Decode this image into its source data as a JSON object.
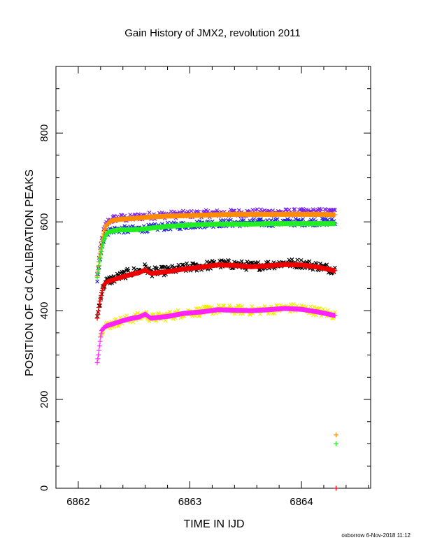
{
  "chart_data": {
    "type": "scatter",
    "title": "Gain History of JMX2, revolution 2011",
    "xlabel": "TIME IN IJD",
    "ylabel": "POSITION OF Cd CALIBRATION PEAKS",
    "xlim": [
      6861.8,
      6864.62
    ],
    "ylim": [
      0,
      950
    ],
    "x_ticks": [
      "6862",
      "6863",
      "6864"
    ],
    "y_ticks": [
      "0",
      "200",
      "400",
      "600",
      "800"
    ],
    "grid": false,
    "legend": "none",
    "footer": "oxborrow  6-Nov-2018 11:12",
    "series": [
      {
        "color": "#7b22ee",
        "marker": "x",
        "scatter": 8,
        "x": [
          6862.17,
          6862.19,
          6862.21,
          6862.23,
          6862.25,
          6862.28,
          6862.32,
          6862.38,
          6862.45,
          6862.55,
          6862.65,
          6862.8,
          6862.95,
          6863.1,
          6863.25,
          6863.4,
          6863.55,
          6863.7,
          6863.85,
          6864.0,
          6864.15,
          6864.3
        ],
        "y": [
          480,
          525,
          560,
          580,
          595,
          603,
          607,
          609,
          608,
          612,
          614,
          616,
          617,
          618,
          619,
          620,
          620,
          621,
          621,
          621,
          622,
          622
        ]
      },
      {
        "color": "#2222dd",
        "marker": "x",
        "scatter": 8,
        "x": [
          6862.17,
          6862.19,
          6862.21,
          6862.23,
          6862.25,
          6862.28,
          6862.32,
          6862.38,
          6862.45,
          6862.55,
          6862.65,
          6862.8,
          6862.95,
          6863.1,
          6863.25,
          6863.4,
          6863.55,
          6863.7,
          6863.85,
          6864.0,
          6864.15,
          6864.3
        ],
        "y": [
          470,
          512,
          545,
          565,
          575,
          580,
          582,
          583,
          582,
          584,
          586,
          590,
          592,
          595,
          597,
          597,
          598,
          598,
          599,
          599,
          600,
          600
        ]
      },
      {
        "color": "#000000",
        "marker": "x",
        "scatter": 10,
        "x": [
          6862.17,
          6862.19,
          6862.21,
          6862.23,
          6862.25,
          6862.28,
          6862.32,
          6862.38,
          6862.45,
          6862.55,
          6862.6,
          6862.65,
          6862.8,
          6862.95,
          6863.1,
          6863.25,
          6863.4,
          6863.55,
          6863.7,
          6863.85,
          6864.0,
          6864.15,
          6864.3
        ],
        "y": [
          385,
          415,
          440,
          458,
          465,
          468,
          472,
          478,
          485,
          490,
          496,
          487,
          490,
          496,
          500,
          505,
          504,
          500,
          503,
          507,
          506,
          500,
          492
        ]
      },
      {
        "color": "#eeee00",
        "marker": "x",
        "scatter": 10,
        "x": [
          6862.2,
          6862.23,
          6862.25,
          6862.28,
          6862.32,
          6862.38,
          6862.45,
          6862.55,
          6862.6,
          6862.65,
          6862.8,
          6862.95,
          6863.1,
          6863.25,
          6863.4,
          6863.55,
          6863.7,
          6863.85,
          6864.0,
          6864.15,
          6864.3
        ],
        "y": [
          355,
          362,
          365,
          368,
          372,
          376,
          381,
          386,
          392,
          383,
          388,
          395,
          398,
          403,
          402,
          400,
          402,
          406,
          405,
          398,
          390
        ]
      },
      {
        "color": "#ff8c00",
        "marker": "+",
        "scatter": 0,
        "line": true,
        "x": [
          6862.17,
          6862.19,
          6862.21,
          6862.23,
          6862.25,
          6862.28,
          6862.32,
          6862.38,
          6862.45,
          6862.55,
          6862.65,
          6862.8,
          6862.95,
          6863.1,
          6863.25,
          6863.4,
          6863.55,
          6863.7,
          6863.85,
          6864.0,
          6864.15,
          6864.3
        ],
        "y": [
          478,
          520,
          555,
          578,
          592,
          600,
          604,
          606,
          607,
          609,
          611,
          613,
          614,
          615,
          616,
          617,
          617,
          617,
          617,
          617,
          617,
          616
        ]
      },
      {
        "color": "#22ee22",
        "marker": "+",
        "scatter": 0,
        "line": true,
        "x": [
          6862.17,
          6862.19,
          6862.21,
          6862.23,
          6862.25,
          6862.28,
          6862.32,
          6862.38,
          6862.45,
          6862.55,
          6862.65,
          6862.8,
          6862.95,
          6863.1,
          6863.25,
          6863.4,
          6863.55,
          6863.7,
          6863.85,
          6864.0,
          6864.15,
          6864.3
        ],
        "y": [
          475,
          510,
          540,
          560,
          572,
          578,
          580,
          582,
          582,
          583,
          586,
          590,
          592,
          594,
          595,
          595,
          595,
          596,
          596,
          596,
          596,
          596
        ]
      },
      {
        "color": "#ee0000",
        "marker": "+",
        "scatter": 0,
        "line": true,
        "x": [
          6862.17,
          6862.19,
          6862.21,
          6862.23,
          6862.25,
          6862.28,
          6862.32,
          6862.38,
          6862.45,
          6862.55,
          6862.6,
          6862.65,
          6862.8,
          6862.95,
          6863.1,
          6863.25,
          6863.4,
          6863.55,
          6863.7,
          6863.85,
          6864.0,
          6864.15,
          6864.3
        ],
        "y": [
          383,
          415,
          440,
          458,
          464,
          467,
          470,
          475,
          480,
          486,
          492,
          484,
          488,
          494,
          498,
          503,
          502,
          499,
          501,
          504,
          503,
          498,
          490
        ]
      },
      {
        "color": "#ff22ff",
        "marker": "+",
        "scatter": 0,
        "line": true,
        "x": [
          6862.17,
          6862.18,
          6862.19,
          6862.2,
          6862.21,
          6862.23,
          6862.25,
          6862.28,
          6862.32,
          6862.38,
          6862.45,
          6862.55,
          6862.6,
          6862.65,
          6862.8,
          6862.95,
          6863.1,
          6863.25,
          6863.4,
          6863.55,
          6863.7,
          6863.85,
          6864.0,
          6864.15,
          6864.3
        ],
        "y": [
          283,
          300,
          320,
          340,
          355,
          362,
          365,
          368,
          371,
          376,
          381,
          386,
          392,
          383,
          387,
          394,
          397,
          402,
          401,
          400,
          402,
          405,
          403,
          397,
          389
        ]
      }
    ],
    "extra_points": [
      {
        "color": "#ff8c00",
        "marker": "+",
        "x": 6864.31,
        "y": 120
      },
      {
        "color": "#22ee22",
        "marker": "+",
        "x": 6864.31,
        "y": 100
      },
      {
        "color": "#ee0000",
        "marker": "+",
        "x": 6864.31,
        "y": 0
      }
    ]
  }
}
